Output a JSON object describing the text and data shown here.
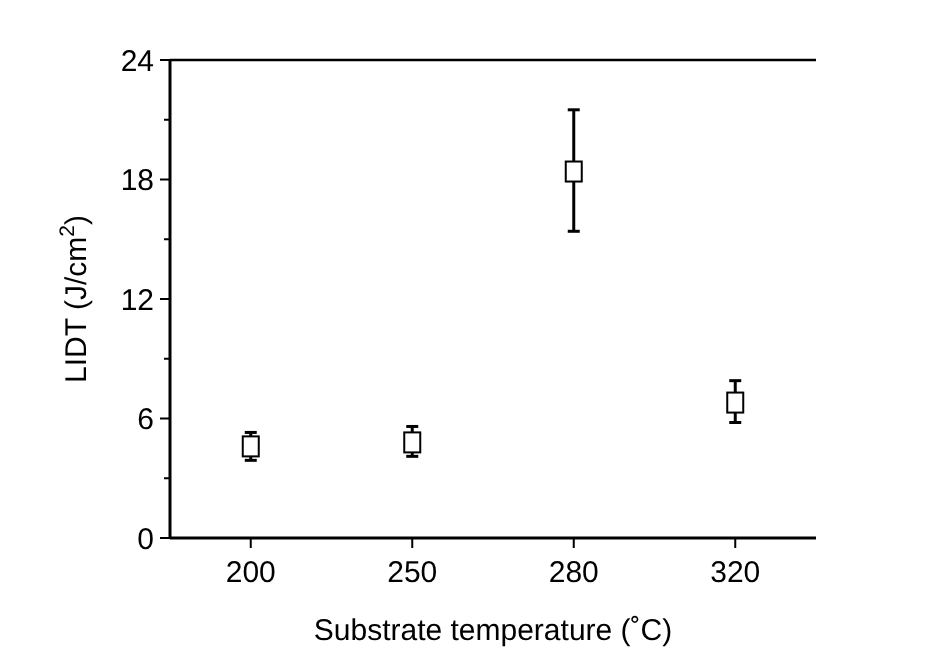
{
  "chart_data": {
    "type": "scatter",
    "xlabel": "Substrate temperature (˚C)",
    "ylabel": "LIDT (J/cm$^{2}$)",
    "categories": [
      "200",
      "250",
      "280",
      "320"
    ],
    "values": [
      4.6,
      4.8,
      18.4,
      6.8
    ],
    "errors": [
      [
        3.9,
        5.3
      ],
      [
        4.1,
        5.6
      ],
      [
        15.4,
        21.5
      ],
      [
        5.8,
        7.9
      ]
    ],
    "color": "#000000",
    "marker": "square",
    "ylim": [
      0,
      24
    ],
    "yticks": [
      0,
      {
        "value": 3,
        "label": null
      },
      6,
      {
        "value": 9,
        "label": null
      },
      12,
      {
        "value": 15,
        "label": null
      },
      18,
      {
        "value": 21,
        "label": null
      },
      24
    ],
    "grid": false
  }
}
